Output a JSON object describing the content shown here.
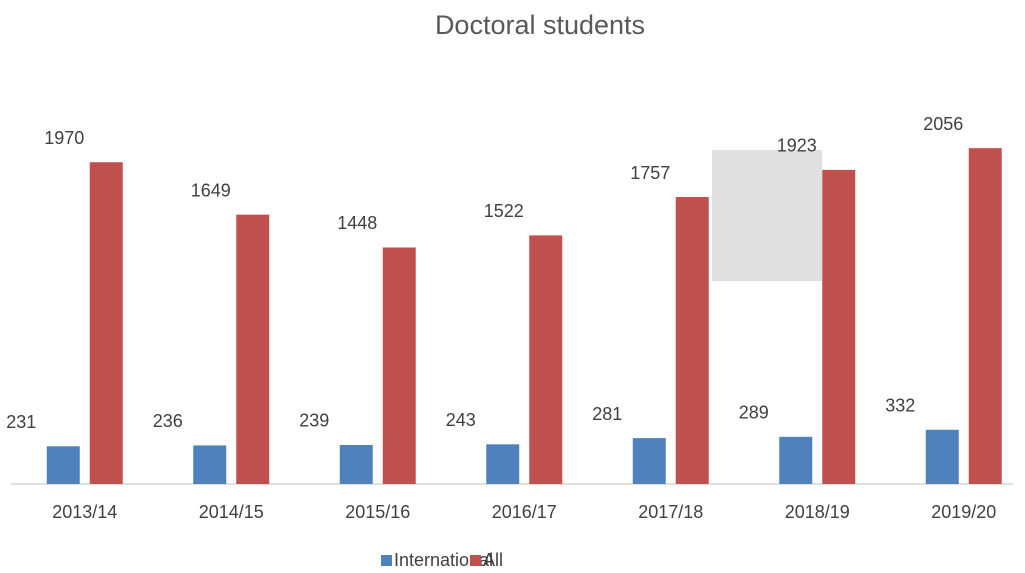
{
  "chart_data": {
    "type": "bar",
    "title": "Doctoral students",
    "categories": [
      "2013/14",
      "2014/15",
      "2015/16",
      "2016/17",
      "2017/18",
      "2018/19",
      "2019/20"
    ],
    "series": [
      {
        "name": "International",
        "color": "#4f81bd",
        "values": [
          231,
          236,
          239,
          243,
          281,
          289,
          332
        ]
      },
      {
        "name": "All",
        "color": "#c0504d",
        "values": [
          1970,
          1649,
          1448,
          1522,
          1757,
          1923,
          2056
        ]
      }
    ],
    "ylim": [
      0,
      2400
    ],
    "legend": "bottom"
  }
}
